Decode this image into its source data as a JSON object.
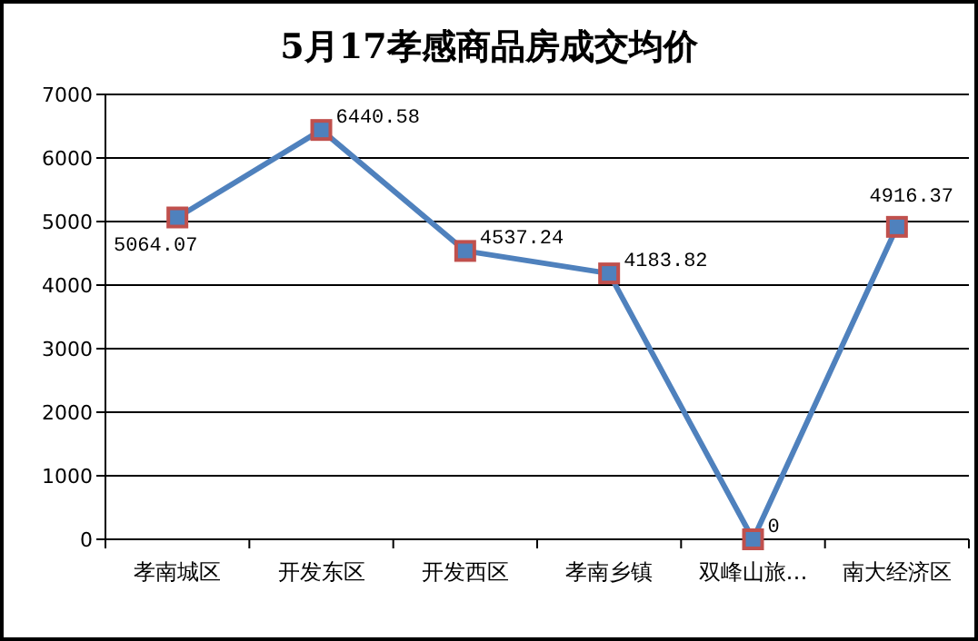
{
  "chart_data": {
    "type": "line",
    "title": "5月17孝感商品房成交均价",
    "categories": [
      "孝南城区",
      "开发东区",
      "开发西区",
      "孝南乡镇",
      "双峰山旅…",
      "南大经济区"
    ],
    "series": [
      {
        "color": "#4f81bd",
        "values": [
          5064.07,
          6440.58,
          4537.24,
          4183.82,
          0,
          4916.37
        ]
      }
    ],
    "ylim": [
      0,
      7000
    ],
    "yticks": [
      0,
      1000,
      2000,
      3000,
      4000,
      5000,
      6000,
      7000
    ],
    "grid": "y",
    "marker": "square",
    "data_labels": true
  }
}
